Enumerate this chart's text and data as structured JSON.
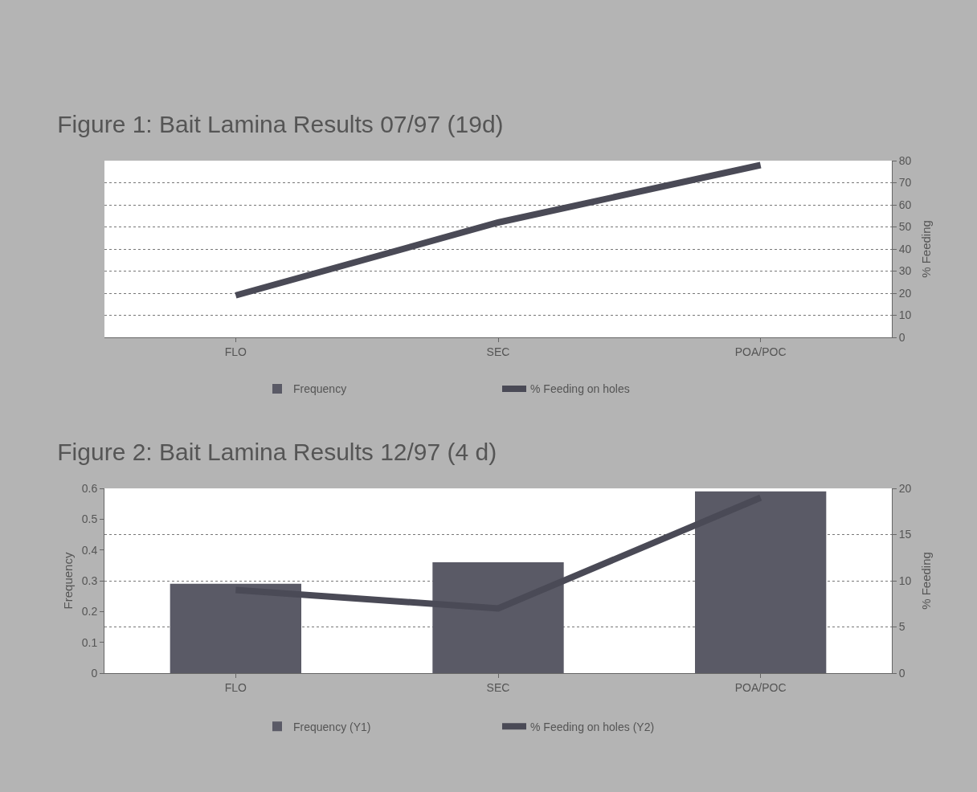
{
  "chart_data": [
    {
      "type": "bar",
      "title": "Figure 1: Bait Lamina Results 07/97 (19d)",
      "categories": [
        "FLO",
        "SEC",
        "POA/POC"
      ],
      "y2label": "% Feeding",
      "y2lim": [
        0,
        80
      ],
      "y2ticks": [
        0,
        10,
        20,
        30,
        40,
        50,
        60,
        70,
        80
      ],
      "grid": "y2",
      "legend": "bottom",
      "series": [
        {
          "name": "Frequency",
          "color": "#5a5a66",
          "values": [
            null,
            null,
            null
          ]
        },
        {
          "name": "% Feeding on holes",
          "type": "line",
          "axis": "y2",
          "color": "#4a4a56",
          "values": [
            19,
            52,
            78
          ]
        }
      ]
    },
    {
      "type": "bar",
      "title": "Figure 2: Bait Lamina Results 12/97 (4 d)",
      "categories": [
        "FLO",
        "SEC",
        "POA/POC"
      ],
      "ylabel": "Frequency",
      "y2label": "% Feeding",
      "ylim": [
        0,
        0.6
      ],
      "yticks": [
        0,
        0.1,
        0.2,
        0.3,
        0.4,
        0.5,
        0.6
      ],
      "y2lim": [
        0,
        20
      ],
      "y2ticks": [
        0,
        5,
        10,
        15,
        20
      ],
      "grid": "y2",
      "legend": "bottom",
      "series": [
        {
          "name": "Frequency (Y1)",
          "color": "#5a5a66",
          "values": [
            0.29,
            0.36,
            0.59
          ]
        },
        {
          "name": "% Feeding on holes (Y2)",
          "type": "line",
          "axis": "y2",
          "color": "#4a4a56",
          "values": [
            9,
            7,
            19
          ]
        }
      ]
    }
  ]
}
